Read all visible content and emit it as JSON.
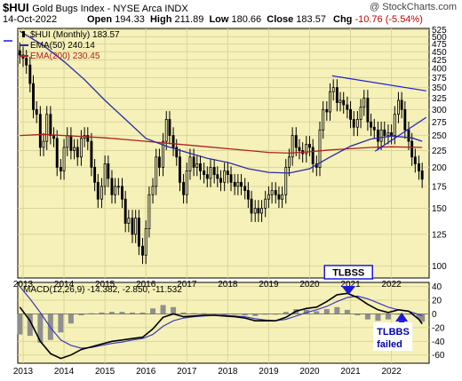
{
  "header": {
    "symbol": "$HUI",
    "name": "Gold Bugs Index - NYSE Arca INDX",
    "watermark": "@ StockCharts.com",
    "date": "14-Oct-2022",
    "open_label": "Open",
    "open": "194.33",
    "high_label": "High",
    "high": "211.89",
    "low_label": "Low",
    "low": "180.66",
    "close_label": "Close",
    "close": "183.57",
    "chg_label": "Chg",
    "chg": "-10.76 (-5.54%)",
    "chg_color": "#cc0000"
  },
  "colors": {
    "background": "#f5f1b8",
    "candle": "#000000",
    "ema50": "#2a2aa8",
    "ema200": "#b02020",
    "trendline": "#1a1ad8",
    "macd": "#000000",
    "signal": "#3a3ac0",
    "histogram": "#8f8f8f",
    "annotation": "#1a1ad8"
  },
  "chart_data": [
    {
      "type": "candlestick",
      "panel": "price",
      "legend": [
        {
          "name": "$HUI (Monthly) 183.57",
          "style": "candle"
        },
        {
          "name": "EMA(50) 240.14",
          "color": "#2a2aa8"
        },
        {
          "name": "EMA(200) 230.45",
          "color": "#b02020"
        }
      ],
      "x_labels": [
        "2013",
        "2014",
        "2015",
        "2016",
        "2017",
        "2018",
        "2019",
        "2020",
        "2021",
        "2022"
      ],
      "x_range": [
        2012.87,
        2022.92
      ],
      "y_scale": "log",
      "y_ticks": [
        525,
        500,
        475,
        450,
        425,
        400,
        375,
        350,
        325,
        300,
        275,
        250,
        225,
        200,
        175,
        150,
        125,
        100
      ],
      "ylim": [
        92,
        530
      ],
      "grid": true,
      "close_series": [
        [
          2012.92,
          440
        ],
        [
          2013.0,
          430
        ],
        [
          2013.08,
          410
        ],
        [
          2013.17,
          360
        ],
        [
          2013.25,
          300
        ],
        [
          2013.33,
          290
        ],
        [
          2013.42,
          230
        ],
        [
          2013.5,
          240
        ],
        [
          2013.58,
          290
        ],
        [
          2013.67,
          250
        ],
        [
          2013.75,
          245
        ],
        [
          2013.83,
          200
        ],
        [
          2013.92,
          195
        ],
        [
          2014.0,
          230
        ],
        [
          2014.08,
          250
        ],
        [
          2014.17,
          225
        ],
        [
          2014.25,
          230
        ],
        [
          2014.33,
          215
        ],
        [
          2014.42,
          245
        ],
        [
          2014.5,
          250
        ],
        [
          2014.58,
          240
        ],
        [
          2014.67,
          200
        ],
        [
          2014.75,
          180
        ],
        [
          2014.83,
          160
        ],
        [
          2014.92,
          175
        ],
        [
          2015.0,
          205
        ],
        [
          2015.08,
          185
        ],
        [
          2015.17,
          165
        ],
        [
          2015.25,
          175
        ],
        [
          2015.33,
          175
        ],
        [
          2015.42,
          160
        ],
        [
          2015.5,
          135
        ],
        [
          2015.58,
          140
        ],
        [
          2015.67,
          125
        ],
        [
          2015.75,
          140
        ],
        [
          2015.83,
          115
        ],
        [
          2015.92,
          108
        ],
        [
          2016.0,
          130
        ],
        [
          2016.08,
          165
        ],
        [
          2016.17,
          175
        ],
        [
          2016.25,
          215
        ],
        [
          2016.33,
          200
        ],
        [
          2016.42,
          240
        ],
        [
          2016.5,
          280
        ],
        [
          2016.58,
          250
        ],
        [
          2016.67,
          230
        ],
        [
          2016.75,
          215
        ],
        [
          2016.83,
          180
        ],
        [
          2016.92,
          165
        ],
        [
          2017.0,
          195
        ],
        [
          2017.08,
          215
        ],
        [
          2017.17,
          200
        ],
        [
          2017.25,
          205
        ],
        [
          2017.33,
          195
        ],
        [
          2017.42,
          190
        ],
        [
          2017.5,
          185
        ],
        [
          2017.58,
          200
        ],
        [
          2017.67,
          190
        ],
        [
          2017.75,
          185
        ],
        [
          2017.83,
          180
        ],
        [
          2017.92,
          195
        ],
        [
          2018.0,
          190
        ],
        [
          2018.08,
          180
        ],
        [
          2018.17,
          175
        ],
        [
          2018.25,
          180
        ],
        [
          2018.33,
          175
        ],
        [
          2018.42,
          170
        ],
        [
          2018.5,
          160
        ],
        [
          2018.58,
          145
        ],
        [
          2018.67,
          150
        ],
        [
          2018.75,
          145
        ],
        [
          2018.83,
          150
        ],
        [
          2018.92,
          160
        ],
        [
          2019.0,
          165
        ],
        [
          2019.08,
          170
        ],
        [
          2019.17,
          165
        ],
        [
          2019.25,
          160
        ],
        [
          2019.33,
          165
        ],
        [
          2019.42,
          200
        ],
        [
          2019.5,
          215
        ],
        [
          2019.58,
          250
        ],
        [
          2019.67,
          230
        ],
        [
          2019.75,
          225
        ],
        [
          2019.83,
          220
        ],
        [
          2019.92,
          235
        ],
        [
          2020.0,
          230
        ],
        [
          2020.08,
          205
        ],
        [
          2020.17,
          200
        ],
        [
          2020.25,
          260
        ],
        [
          2020.33,
          300
        ],
        [
          2020.42,
          295
        ],
        [
          2020.5,
          340
        ],
        [
          2020.58,
          350
        ],
        [
          2020.67,
          315
        ],
        [
          2020.75,
          320
        ],
        [
          2020.83,
          310
        ],
        [
          2020.92,
          300
        ],
        [
          2021.0,
          280
        ],
        [
          2021.08,
          265
        ],
        [
          2021.17,
          280
        ],
        [
          2021.25,
          305
        ],
        [
          2021.33,
          325
        ],
        [
          2021.42,
          275
        ],
        [
          2021.5,
          265
        ],
        [
          2021.58,
          260
        ],
        [
          2021.67,
          240
        ],
        [
          2021.75,
          260
        ],
        [
          2021.83,
          250
        ],
        [
          2021.92,
          255
        ],
        [
          2022.0,
          250
        ],
        [
          2022.08,
          290
        ],
        [
          2022.17,
          320
        ],
        [
          2022.25,
          300
        ],
        [
          2022.33,
          260
        ],
        [
          2022.42,
          240
        ],
        [
          2022.5,
          215
        ],
        [
          2022.58,
          205
        ],
        [
          2022.67,
          195
        ],
        [
          2022.75,
          184
        ]
      ],
      "ema50_series": [
        [
          2012.92,
          520
        ],
        [
          2013.5,
          470
        ],
        [
          2014.0,
          420
        ],
        [
          2014.5,
          370
        ],
        [
          2015.0,
          320
        ],
        [
          2015.5,
          280
        ],
        [
          2016.0,
          245
        ],
        [
          2016.5,
          232
        ],
        [
          2017.0,
          222
        ],
        [
          2017.5,
          213
        ],
        [
          2018.0,
          207
        ],
        [
          2018.5,
          198
        ],
        [
          2019.0,
          193
        ],
        [
          2019.5,
          192
        ],
        [
          2020.0,
          198
        ],
        [
          2020.5,
          215
        ],
        [
          2021.0,
          232
        ],
        [
          2021.5,
          244
        ],
        [
          2022.0,
          249
        ],
        [
          2022.5,
          246
        ],
        [
          2022.75,
          240
        ]
      ],
      "ema200_series": [
        [
          2012.92,
          250
        ],
        [
          2013.5,
          252
        ],
        [
          2014.0,
          250
        ],
        [
          2014.5,
          248
        ],
        [
          2015.0,
          246
        ],
        [
          2015.5,
          243
        ],
        [
          2016.0,
          240
        ],
        [
          2016.5,
          237
        ],
        [
          2017.0,
          234
        ],
        [
          2017.5,
          231
        ],
        [
          2018.0,
          228
        ],
        [
          2018.5,
          225
        ],
        [
          2019.0,
          222
        ],
        [
          2019.5,
          221
        ],
        [
          2020.0,
          223
        ],
        [
          2020.5,
          226
        ],
        [
          2021.0,
          228
        ],
        [
          2021.5,
          230
        ],
        [
          2022.0,
          231
        ],
        [
          2022.75,
          230
        ]
      ],
      "trendlines": [
        {
          "from": [
            2020.55,
            380
          ],
          "to": [
            2022.85,
            342
          ]
        },
        {
          "from": [
            2021.6,
            224
          ],
          "to": [
            2022.85,
            284
          ]
        }
      ]
    },
    {
      "type": "macd",
      "panel": "indicator",
      "legend": [
        {
          "name": "MACD(12,26,9) -14.382, -2.850, -11.532"
        }
      ],
      "x_labels": [
        "2013",
        "2014",
        "2015",
        "2016",
        "2017",
        "2018",
        "2019",
        "2020",
        "2021",
        "2022"
      ],
      "y_ticks": [
        40,
        20,
        0,
        -20,
        -40,
        -60
      ],
      "ylim": [
        -72,
        46
      ],
      "macd_series": [
        [
          2012.92,
          10
        ],
        [
          2013.17,
          -10
        ],
        [
          2013.42,
          -40
        ],
        [
          2013.67,
          -58
        ],
        [
          2013.92,
          -65
        ],
        [
          2014.17,
          -60
        ],
        [
          2014.42,
          -52
        ],
        [
          2014.67,
          -48
        ],
        [
          2014.92,
          -44
        ],
        [
          2015.17,
          -40
        ],
        [
          2015.42,
          -38
        ],
        [
          2015.67,
          -36
        ],
        [
          2015.92,
          -34
        ],
        [
          2016.17,
          -22
        ],
        [
          2016.42,
          -5
        ],
        [
          2016.67,
          0
        ],
        [
          2016.92,
          -4
        ],
        [
          2017.17,
          -3
        ],
        [
          2017.42,
          -2
        ],
        [
          2017.67,
          -2
        ],
        [
          2017.92,
          -3
        ],
        [
          2018.17,
          -4
        ],
        [
          2018.42,
          -6
        ],
        [
          2018.67,
          -10
        ],
        [
          2018.92,
          -10
        ],
        [
          2019.17,
          -10
        ],
        [
          2019.42,
          -5
        ],
        [
          2019.67,
          4
        ],
        [
          2019.92,
          8
        ],
        [
          2020.17,
          10
        ],
        [
          2020.42,
          18
        ],
        [
          2020.67,
          28
        ],
        [
          2020.92,
          30
        ],
        [
          2021.17,
          24
        ],
        [
          2021.42,
          14
        ],
        [
          2021.67,
          6
        ],
        [
          2021.92,
          2
        ],
        [
          2022.17,
          6
        ],
        [
          2022.42,
          4
        ],
        [
          2022.67,
          -8
        ],
        [
          2022.75,
          -14.382
        ]
      ],
      "signal_series": [
        [
          2012.92,
          40
        ],
        [
          2013.17,
          22
        ],
        [
          2013.42,
          2
        ],
        [
          2013.67,
          -20
        ],
        [
          2013.92,
          -38
        ],
        [
          2014.17,
          -46
        ],
        [
          2014.42,
          -50
        ],
        [
          2014.67,
          -49
        ],
        [
          2014.92,
          -46
        ],
        [
          2015.17,
          -43
        ],
        [
          2015.42,
          -41
        ],
        [
          2015.67,
          -38
        ],
        [
          2015.92,
          -36
        ],
        [
          2016.17,
          -30
        ],
        [
          2016.42,
          -18
        ],
        [
          2016.67,
          -10
        ],
        [
          2016.92,
          -6
        ],
        [
          2017.17,
          -4
        ],
        [
          2017.42,
          -3
        ],
        [
          2017.67,
          -2
        ],
        [
          2017.92,
          -2
        ],
        [
          2018.17,
          -3
        ],
        [
          2018.42,
          -4
        ],
        [
          2018.67,
          -7
        ],
        [
          2018.92,
          -9
        ],
        [
          2019.17,
          -10
        ],
        [
          2019.42,
          -8
        ],
        [
          2019.67,
          -3
        ],
        [
          2019.92,
          2
        ],
        [
          2020.17,
          6
        ],
        [
          2020.42,
          11
        ],
        [
          2020.67,
          18
        ],
        [
          2020.92,
          24
        ],
        [
          2021.17,
          26
        ],
        [
          2021.42,
          22
        ],
        [
          2021.67,
          16
        ],
        [
          2021.92,
          10
        ],
        [
          2022.17,
          6
        ],
        [
          2022.42,
          4
        ],
        [
          2022.67,
          -1
        ],
        [
          2022.75,
          -2.85
        ]
      ],
      "annotations": [
        {
          "text": "TLBSS",
          "boxed": true,
          "arrow": "down",
          "at": [
            2020.95,
            30
          ]
        },
        {
          "text": "TLBBS",
          "arrow": "up",
          "at": [
            2022.25,
            2
          ]
        },
        {
          "text": "failed"
        }
      ]
    }
  ]
}
